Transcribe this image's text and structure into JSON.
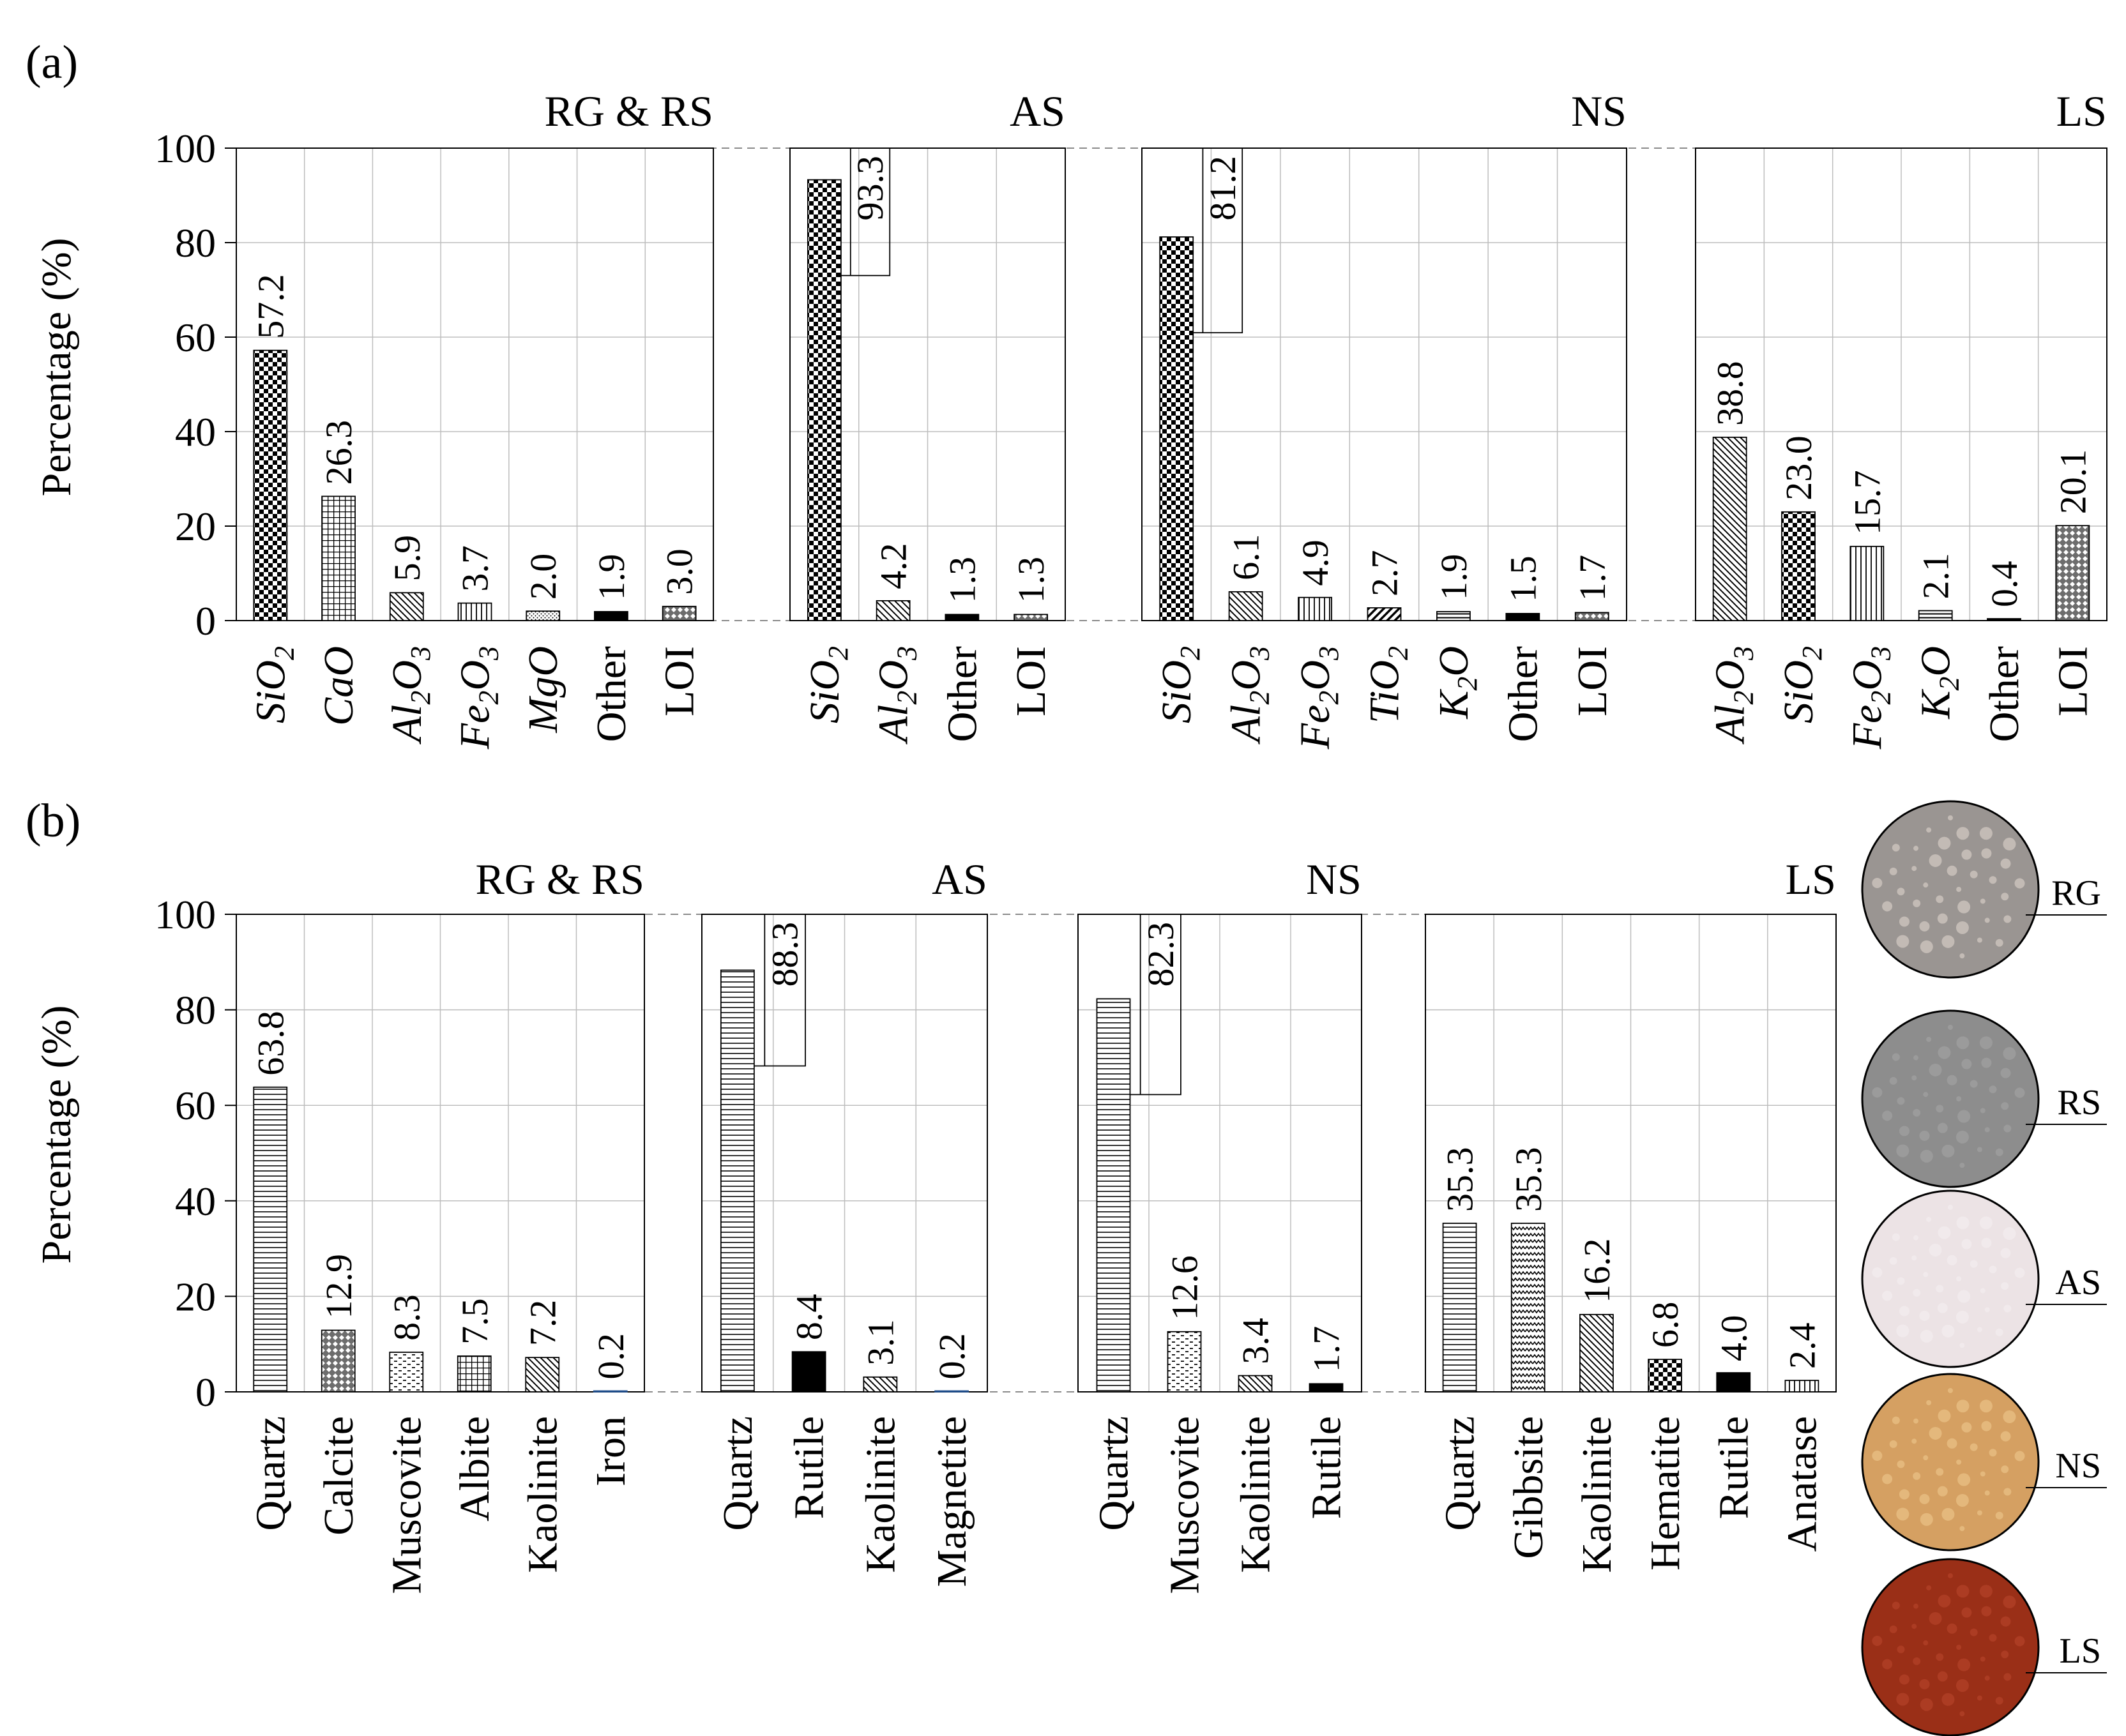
{
  "panel_labels": {
    "a": "(a)",
    "b": "(b)"
  },
  "y_axis_label": "Percentage (%)",
  "y_ticks": [
    "0",
    "20",
    "40",
    "60",
    "80",
    "100"
  ],
  "colors": {
    "axis": "#000000",
    "grid": "#bdbdbd",
    "dashed": "#8a8a8a",
    "bar": "#000000"
  },
  "chart_data": [
    {
      "type": "bar",
      "panel": "a",
      "title": "RG & RS",
      "ylabel": "Percentage (%)",
      "ylim": [
        0,
        100
      ],
      "grid": true,
      "categories": [
        {
          "main": "SiO",
          "sub": "2",
          "italic": true
        },
        {
          "main": "CaO",
          "sub": "",
          "italic": true
        },
        {
          "main": "Al",
          "sub": "2",
          "main2": "O",
          "sub2": "3",
          "italic": true
        },
        {
          "main": "Fe",
          "sub": "2",
          "main2": "O",
          "sub2": "3",
          "italic": true
        },
        {
          "main": "MgO",
          "sub": "",
          "italic": true
        },
        {
          "main": "Other",
          "sub": "",
          "italic": false
        },
        {
          "main": "LOI",
          "sub": "",
          "italic": false
        }
      ],
      "values": [
        57.2,
        26.3,
        5.9,
        3.7,
        2.0,
        1.9,
        3.0
      ],
      "labels": [
        "57.2",
        "26.3",
        "5.9",
        "3.7",
        "2.0",
        "1.9",
        "3.0"
      ],
      "patterns": [
        "checker",
        "grid",
        "diag",
        "vert",
        "dots",
        "solid",
        "diamond"
      ]
    },
    {
      "type": "bar",
      "panel": "a",
      "title": "AS",
      "ylim": [
        0,
        100
      ],
      "grid": true,
      "categories": [
        {
          "main": "SiO",
          "sub": "2",
          "italic": true
        },
        {
          "main": "Al",
          "sub": "2",
          "main2": "O",
          "sub2": "3",
          "italic": true
        },
        {
          "main": "Other",
          "sub": "",
          "italic": false
        },
        {
          "main": "LOI",
          "sub": "",
          "italic": false
        }
      ],
      "values": [
        93.3,
        4.2,
        1.3,
        1.3
      ],
      "labels": [
        "93.3",
        "4.2",
        "1.3",
        "1.3"
      ],
      "patterns": [
        "checker",
        "diag",
        "solid",
        "diamond"
      ]
    },
    {
      "type": "bar",
      "panel": "a",
      "title": "NS",
      "ylim": [
        0,
        100
      ],
      "grid": true,
      "categories": [
        {
          "main": "SiO",
          "sub": "2",
          "italic": true
        },
        {
          "main": "Al",
          "sub": "2",
          "main2": "O",
          "sub2": "3",
          "italic": true
        },
        {
          "main": "Fe",
          "sub": "2",
          "main2": "O",
          "sub2": "3",
          "italic": true
        },
        {
          "main": "TiO",
          "sub": "2",
          "italic": true
        },
        {
          "main": "K",
          "sub": "2",
          "main2": "O",
          "sub2": "",
          "italic": true
        },
        {
          "main": "Other",
          "sub": "",
          "italic": false
        },
        {
          "main": "LOI",
          "sub": "",
          "italic": false
        }
      ],
      "values": [
        81.2,
        6.1,
        4.9,
        2.7,
        1.9,
        1.5,
        1.7
      ],
      "labels": [
        "81.2",
        "6.1",
        "4.9",
        "2.7",
        "1.9",
        "1.5",
        "1.7"
      ],
      "patterns": [
        "checker",
        "diag",
        "vert",
        "diagthick",
        "horizdense",
        "solid",
        "diamond"
      ]
    },
    {
      "type": "bar",
      "panel": "a",
      "title": "LS",
      "ylim": [
        0,
        100
      ],
      "grid": true,
      "categories": [
        {
          "main": "Al",
          "sub": "2",
          "main2": "O",
          "sub2": "3",
          "italic": true
        },
        {
          "main": "SiO",
          "sub": "2",
          "italic": true
        },
        {
          "main": "Fe",
          "sub": "2",
          "main2": "O",
          "sub2": "3",
          "italic": true
        },
        {
          "main": "K",
          "sub": "2",
          "main2": "O",
          "sub2": "",
          "italic": true
        },
        {
          "main": "Other",
          "sub": "",
          "italic": false
        },
        {
          "main": "LOI",
          "sub": "",
          "italic": false
        }
      ],
      "values": [
        38.8,
        23.0,
        15.7,
        2.1,
        0.4,
        20.1
      ],
      "labels": [
        "38.8",
        "23.0",
        "15.7",
        "2.1",
        "0.4",
        "20.1"
      ],
      "patterns": [
        "diag",
        "checker",
        "vert",
        "horizdense",
        "solid",
        "diamond"
      ]
    },
    {
      "type": "bar",
      "panel": "b",
      "title": "RG & RS",
      "ylabel": "Percentage (%)",
      "ylim": [
        0,
        100
      ],
      "grid": true,
      "categories": [
        {
          "main": "Quartz"
        },
        {
          "main": "Calcite"
        },
        {
          "main": "Muscovite"
        },
        {
          "main": "Albite"
        },
        {
          "main": "Kaolinite"
        },
        {
          "main": "Iron"
        }
      ],
      "values": [
        63.8,
        12.9,
        8.3,
        7.5,
        7.2,
        0.2
      ],
      "labels": [
        "63.8",
        "12.9",
        "8.3",
        "7.5",
        "7.2",
        "0.2"
      ],
      "patterns": [
        "horiz",
        "diamond",
        "dash",
        "grid",
        "diag",
        "solidblue"
      ]
    },
    {
      "type": "bar",
      "panel": "b",
      "title": "AS",
      "ylim": [
        0,
        100
      ],
      "grid": true,
      "categories": [
        {
          "main": "Quartz"
        },
        {
          "main": "Rutile"
        },
        {
          "main": "Kaolinite"
        },
        {
          "main": "Magnetite"
        }
      ],
      "values": [
        88.3,
        8.4,
        3.1,
        0.2
      ],
      "labels": [
        "88.3",
        "8.4",
        "3.1",
        "0.2"
      ],
      "patterns": [
        "horiz",
        "solid",
        "diag",
        "solidblue"
      ]
    },
    {
      "type": "bar",
      "panel": "b",
      "title": "NS",
      "ylim": [
        0,
        100
      ],
      "grid": true,
      "categories": [
        {
          "main": "Quartz"
        },
        {
          "main": "Muscovite"
        },
        {
          "main": "Kaolinite"
        },
        {
          "main": "Rutile"
        }
      ],
      "values": [
        82.3,
        12.6,
        3.4,
        1.7
      ],
      "labels": [
        "82.3",
        "12.6",
        "3.4",
        "1.7"
      ],
      "patterns": [
        "horiz",
        "dash",
        "diag",
        "solid"
      ]
    },
    {
      "type": "bar",
      "panel": "b",
      "title": "LS",
      "ylim": [
        0,
        100
      ],
      "grid": true,
      "categories": [
        {
          "main": "Quartz"
        },
        {
          "main": "Gibbsite"
        },
        {
          "main": "Kaolinite"
        },
        {
          "main": "Hematite"
        },
        {
          "main": "Rutile"
        },
        {
          "main": "Anatase"
        }
      ],
      "values": [
        35.3,
        35.3,
        16.2,
        6.8,
        4.0,
        2.4
      ],
      "labels": [
        "35.3",
        "35.3",
        "16.2",
        "6.8",
        "4.0",
        "2.4"
      ],
      "patterns": [
        "horiz",
        "zigzag",
        "diag",
        "checker",
        "solid",
        "vert"
      ]
    }
  ],
  "samples": [
    {
      "name": "RG",
      "color": "#9a9592",
      "accent": "#d9cfc8"
    },
    {
      "name": "RS",
      "color": "#8d8d8d",
      "accent": "#a3a3a3"
    },
    {
      "name": "AS",
      "color": "#ece3e5",
      "accent": "#f5eef0"
    },
    {
      "name": "NS",
      "color": "#d5a062",
      "accent": "#ecc58b"
    },
    {
      "name": "LS",
      "color": "#9a2f17",
      "accent": "#b5432a"
    }
  ]
}
